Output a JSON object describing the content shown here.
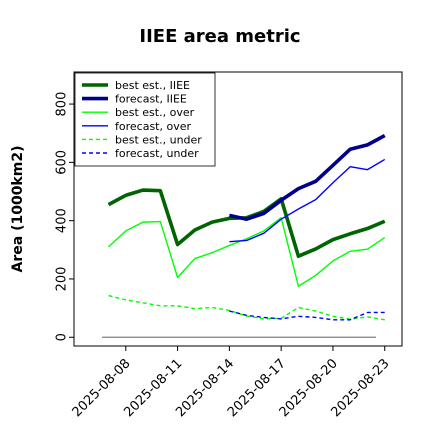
{
  "chart_data": {
    "type": "line",
    "title": "IIEE area metric",
    "ylabel": "Area (1000km2)",
    "xlabel": "",
    "xlim": [
      "2025-08-05",
      "2025-08-24"
    ],
    "ylim": [
      -30,
      910
    ],
    "yticks": [
      0,
      200,
      400,
      600,
      800
    ],
    "xticks": [
      "2025-08-08",
      "2025-08-11",
      "2025-08-14",
      "2025-08-17",
      "2025-08-20",
      "2025-08-23"
    ],
    "highlighted_xtick": "2025-08-14",
    "highlight_color": "#2ca02c",
    "grid": false,
    "legend_position": "top-left",
    "baseline": {
      "y": 0,
      "color": "#808080"
    },
    "series": [
      {
        "name": "best est., IIEE",
        "color": "#006400",
        "style": "solid",
        "weight": "thick",
        "points": [
          [
            "2025-08-07",
            455
          ],
          [
            "2025-08-08",
            487
          ],
          [
            "2025-08-09",
            505
          ],
          [
            "2025-08-10",
            503
          ],
          [
            "2025-08-11",
            318
          ],
          [
            "2025-08-12",
            368
          ],
          [
            "2025-08-13",
            395
          ],
          [
            "2025-08-14",
            408
          ],
          [
            "2025-08-15",
            410
          ],
          [
            "2025-08-16",
            432
          ],
          [
            "2025-08-17",
            475
          ],
          [
            "2025-08-18",
            278
          ],
          [
            "2025-08-19",
            303
          ],
          [
            "2025-08-20",
            335
          ],
          [
            "2025-08-21",
            355
          ],
          [
            "2025-08-22",
            373
          ],
          [
            "2025-08-23",
            398
          ]
        ]
      },
      {
        "name": "forecast, IIEE",
        "color": "#00008b",
        "style": "solid",
        "weight": "thick",
        "points": [
          [
            "2025-08-14",
            418
          ],
          [
            "2025-08-15",
            405
          ],
          [
            "2025-08-16",
            425
          ],
          [
            "2025-08-17",
            470
          ],
          [
            "2025-08-18",
            510
          ],
          [
            "2025-08-19",
            535
          ],
          [
            "2025-08-20",
            590
          ],
          [
            "2025-08-21",
            645
          ],
          [
            "2025-08-22",
            660
          ],
          [
            "2025-08-23",
            692
          ]
        ]
      },
      {
        "name": "best est., over",
        "color": "#00ff00",
        "style": "solid",
        "weight": "thin",
        "points": [
          [
            "2025-08-07",
            310
          ],
          [
            "2025-08-08",
            365
          ],
          [
            "2025-08-09",
            395
          ],
          [
            "2025-08-10",
            397
          ],
          [
            "2025-08-11",
            205
          ],
          [
            "2025-08-12",
            270
          ],
          [
            "2025-08-13",
            290
          ],
          [
            "2025-08-14",
            315
          ],
          [
            "2025-08-15",
            338
          ],
          [
            "2025-08-16",
            365
          ],
          [
            "2025-08-17",
            410
          ],
          [
            "2025-08-18",
            175
          ],
          [
            "2025-08-19",
            212
          ],
          [
            "2025-08-20",
            262
          ],
          [
            "2025-08-21",
            295
          ],
          [
            "2025-08-22",
            302
          ],
          [
            "2025-08-23",
            342
          ]
        ]
      },
      {
        "name": "forecast, over",
        "color": "#0000ff",
        "style": "solid",
        "weight": "thin",
        "points": [
          [
            "2025-08-14",
            328
          ],
          [
            "2025-08-15",
            332
          ],
          [
            "2025-08-16",
            357
          ],
          [
            "2025-08-17",
            405
          ],
          [
            "2025-08-18",
            440
          ],
          [
            "2025-08-19",
            472
          ],
          [
            "2025-08-20",
            530
          ],
          [
            "2025-08-21",
            585
          ],
          [
            "2025-08-22",
            575
          ],
          [
            "2025-08-23",
            610
          ]
        ]
      },
      {
        "name": "best est., under",
        "color": "#00ff00",
        "style": "dashed",
        "weight": "thin",
        "points": [
          [
            "2025-08-07",
            143
          ],
          [
            "2025-08-08",
            128
          ],
          [
            "2025-08-09",
            118
          ],
          [
            "2025-08-10",
            108
          ],
          [
            "2025-08-11",
            108
          ],
          [
            "2025-08-12",
            98
          ],
          [
            "2025-08-13",
            102
          ],
          [
            "2025-08-14",
            92
          ],
          [
            "2025-08-15",
            73
          ],
          [
            "2025-08-16",
            63
          ],
          [
            "2025-08-17",
            65
          ],
          [
            "2025-08-18",
            102
          ],
          [
            "2025-08-19",
            90
          ],
          [
            "2025-08-20",
            72
          ],
          [
            "2025-08-21",
            62
          ],
          [
            "2025-08-22",
            70
          ],
          [
            "2025-08-23",
            60
          ]
        ]
      },
      {
        "name": "forecast, under",
        "color": "#0000ff",
        "style": "dashed",
        "weight": "thin",
        "points": [
          [
            "2025-08-14",
            90
          ],
          [
            "2025-08-15",
            75
          ],
          [
            "2025-08-16",
            68
          ],
          [
            "2025-08-17",
            63
          ],
          [
            "2025-08-18",
            72
          ],
          [
            "2025-08-19",
            68
          ],
          [
            "2025-08-20",
            60
          ],
          [
            "2025-08-21",
            60
          ],
          [
            "2025-08-22",
            85
          ],
          [
            "2025-08-23",
            85
          ]
        ]
      }
    ]
  }
}
